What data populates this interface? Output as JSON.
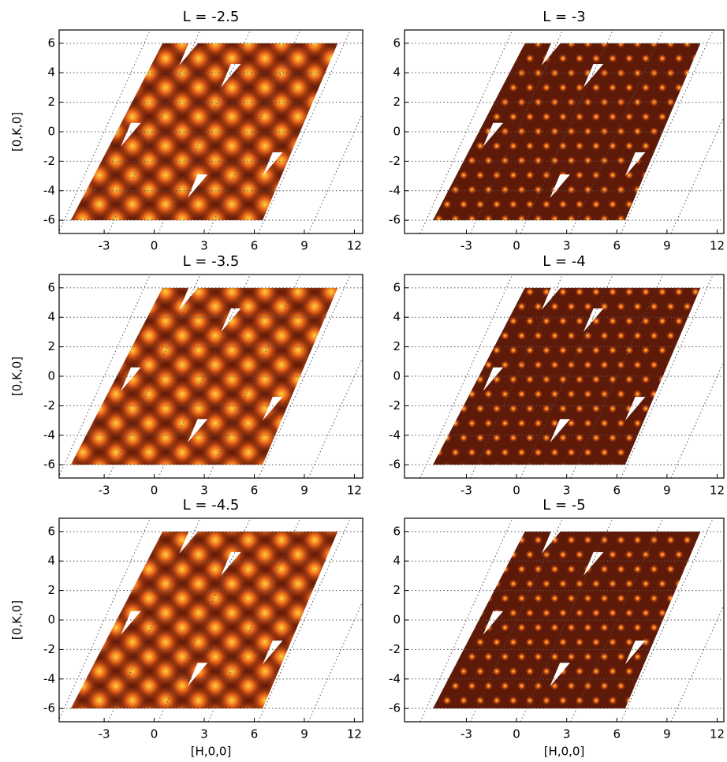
{
  "chart_data": [
    {
      "type": "heatmap",
      "title": "L = -2.5",
      "ylabel": "[0,K,0]",
      "xlim": [
        -5.7,
        12.5
      ],
      "ylim": [
        -6.9,
        6.9
      ],
      "xticks": [
        -3,
        0,
        3,
        6,
        9,
        12
      ],
      "yticks": [
        -6,
        -4,
        -2,
        0,
        2,
        4,
        6
      ],
      "grid": true
    },
    {
      "type": "heatmap",
      "title": "L = -3",
      "xlim": [
        -6.7,
        12.4
      ],
      "ylim": [
        -6.9,
        6.9
      ],
      "xticks": [
        -3,
        0,
        3,
        6,
        9,
        12
      ],
      "yticks": [
        -6,
        -4,
        -2,
        0,
        2,
        4,
        6
      ],
      "grid": true
    },
    {
      "type": "heatmap",
      "title": "L = -3.5",
      "ylabel": "[0,K,0]",
      "xlim": [
        -5.7,
        12.5
      ],
      "ylim": [
        -6.9,
        6.9
      ],
      "xticks": [
        -3,
        0,
        3,
        6,
        9,
        12
      ],
      "yticks": [
        -6,
        -4,
        -2,
        0,
        2,
        4,
        6
      ],
      "grid": true
    },
    {
      "type": "heatmap",
      "title": "L = -4",
      "xlim": [
        -6.7,
        12.4
      ],
      "ylim": [
        -6.9,
        6.9
      ],
      "xticks": [
        -3,
        0,
        3,
        6,
        9,
        12
      ],
      "yticks": [
        -6,
        -4,
        -2,
        0,
        2,
        4,
        6
      ],
      "grid": true
    },
    {
      "type": "heatmap",
      "title": "L = -4.5",
      "xlabel": "[H,0,0]",
      "ylabel": "[0,K,0]",
      "xlim": [
        -5.7,
        12.5
      ],
      "ylim": [
        -6.9,
        6.9
      ],
      "xticks": [
        -3,
        0,
        3,
        6,
        9,
        12
      ],
      "yticks": [
        -6,
        -4,
        -2,
        0,
        2,
        4,
        6
      ],
      "grid": true
    },
    {
      "type": "heatmap",
      "title": "L = -5",
      "xlabel": "[H,0,0]",
      "xlim": [
        -6.7,
        12.4
      ],
      "ylim": [
        -6.9,
        6.9
      ],
      "xticks": [
        -3,
        0,
        3,
        6,
        9,
        12
      ],
      "yticks": [
        -6,
        -4,
        -2,
        0,
        2,
        4,
        6
      ],
      "grid": true
    }
  ]
}
